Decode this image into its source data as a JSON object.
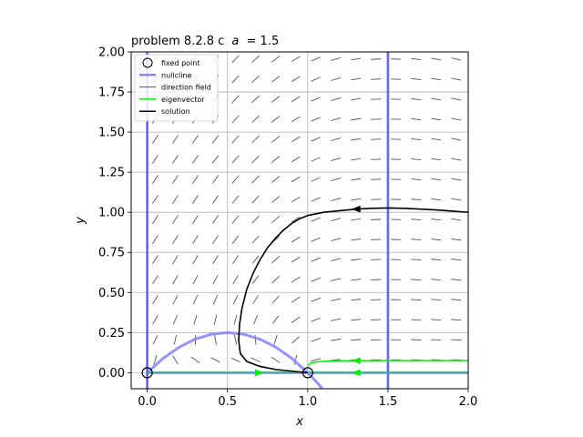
{
  "chart_data": {
    "type": "line",
    "title": "problem 8.2.8 c a = 1.5",
    "title_prefix": "problem 8.2.8 c",
    "title_param_symbol": "a",
    "title_param_value": "= 1.5",
    "xlabel": "x",
    "ylabel": "y",
    "xlim": [
      -0.1,
      2.0
    ],
    "ylim": [
      -0.1,
      2.0
    ],
    "grid": true,
    "legend_position": "top-left",
    "x_ticks": [
      {
        "value": 0.0,
        "label": "0.0"
      },
      {
        "value": 0.5,
        "label": "0.5"
      },
      {
        "value": 1.0,
        "label": "1.0"
      },
      {
        "value": 1.5,
        "label": "1.5"
      },
      {
        "value": 2.0,
        "label": "2.0"
      }
    ],
    "y_ticks": [
      {
        "value": 0.0,
        "label": "0.00"
      },
      {
        "value": 0.25,
        "label": "0.25"
      },
      {
        "value": 0.5,
        "label": "0.50"
      },
      {
        "value": 0.75,
        "label": "0.75"
      },
      {
        "value": 1.0,
        "label": "1.00"
      },
      {
        "value": 1.25,
        "label": "1.25"
      },
      {
        "value": 1.5,
        "label": "1.50"
      },
      {
        "value": 1.75,
        "label": "1.75"
      },
      {
        "value": 2.0,
        "label": "2.00"
      }
    ],
    "legend": [
      {
        "label": "fixed point",
        "kind": "marker",
        "color": "#000000"
      },
      {
        "label": "nullcline",
        "kind": "line",
        "color": "#8888ff"
      },
      {
        "label": "direction field",
        "kind": "line",
        "color": "#555555"
      },
      {
        "label": "eigenvector",
        "kind": "line",
        "color": "#00ee00"
      },
      {
        "label": "solution",
        "kind": "line",
        "color": "#000000"
      }
    ],
    "fixed_points": [
      {
        "x": 0.0,
        "y": 0.0
      },
      {
        "x": 1.0,
        "y": 0.0
      }
    ],
    "nullclines": [
      {
        "name": "x = 0",
        "points": [
          [
            0.0,
            -0.1
          ],
          [
            0.0,
            2.0
          ]
        ]
      },
      {
        "name": "x = 1.5",
        "points": [
          [
            1.5,
            -0.1
          ],
          [
            1.5,
            2.0
          ]
        ]
      },
      {
        "name": "y = x(1 - x)",
        "points": [
          [
            0.0,
            0.0
          ],
          [
            0.1,
            0.09
          ],
          [
            0.2,
            0.16
          ],
          [
            0.3,
            0.21
          ],
          [
            0.4,
            0.24
          ],
          [
            0.5,
            0.25
          ],
          [
            0.6,
            0.24
          ],
          [
            0.7,
            0.21
          ],
          [
            0.8,
            0.16
          ],
          [
            0.9,
            0.09
          ],
          [
            1.0,
            0.0
          ],
          [
            1.05,
            -0.0525
          ],
          [
            1.0916,
            -0.1
          ]
        ]
      },
      {
        "name": "y = 0",
        "points": [
          [
            0.0,
            0.0
          ],
          [
            2.0,
            0.0
          ]
        ]
      }
    ],
    "eigenvectors": [
      {
        "name": "stable axis",
        "points": [
          [
            0.0,
            0.0
          ],
          [
            2.0,
            0.0
          ]
        ],
        "arrows": [
          {
            "x": 0.7,
            "y": 0.0,
            "direction": "right"
          },
          {
            "x": 1.3,
            "y": 0.0,
            "direction": "left"
          }
        ]
      },
      {
        "name": "manifold",
        "points": [
          [
            1.0,
            0.045
          ],
          [
            1.02,
            0.06
          ],
          [
            1.06,
            0.068
          ],
          [
            1.12,
            0.072
          ],
          [
            1.2,
            0.074
          ],
          [
            1.3,
            0.075
          ],
          [
            1.4,
            0.075
          ],
          [
            1.5,
            0.076
          ],
          [
            1.7,
            0.076
          ],
          [
            2.0,
            0.076
          ]
        ],
        "arrows": [
          {
            "x": 1.3,
            "y": 0.075,
            "direction": "left"
          }
        ]
      }
    ],
    "solutions": [
      {
        "name": "trajectory",
        "points": [
          [
            2.0,
            1.0
          ],
          [
            1.8,
            1.015
          ],
          [
            1.6,
            1.025
          ],
          [
            1.5,
            1.027
          ],
          [
            1.4,
            1.025
          ],
          [
            1.3,
            1.02
          ],
          [
            1.2,
            1.01
          ],
          [
            1.1,
            1.0
          ],
          [
            1.0,
            0.98
          ],
          [
            0.95,
            0.96
          ],
          [
            0.9,
            0.93
          ],
          [
            0.85,
            0.89
          ],
          [
            0.8,
            0.84
          ],
          [
            0.75,
            0.78
          ],
          [
            0.7,
            0.7
          ],
          [
            0.66,
            0.62
          ],
          [
            0.62,
            0.52
          ],
          [
            0.59,
            0.4
          ],
          [
            0.575,
            0.3
          ],
          [
            0.57,
            0.2
          ],
          [
            0.58,
            0.12
          ],
          [
            0.62,
            0.07
          ],
          [
            0.7,
            0.04
          ],
          [
            0.8,
            0.02
          ],
          [
            0.9,
            0.01
          ],
          [
            1.0,
            0.0
          ]
        ],
        "arrows": [
          {
            "x": 1.3,
            "y": 1.02,
            "direction": "left"
          }
        ]
      }
    ],
    "direction_field": {
      "x_values": [
        0.05,
        0.175,
        0.3,
        0.425,
        0.55,
        0.675,
        0.8,
        0.925,
        1.05,
        1.175,
        1.3,
        1.425,
        1.55,
        1.675,
        1.8,
        1.925
      ],
      "y_values": [
        0.08,
        0.205,
        0.33,
        0.455,
        0.58,
        0.705,
        0.83,
        0.955,
        1.08,
        1.205,
        1.33,
        1.455,
        1.58,
        1.705,
        1.83,
        1.955
      ],
      "a": 1.5
    }
  }
}
